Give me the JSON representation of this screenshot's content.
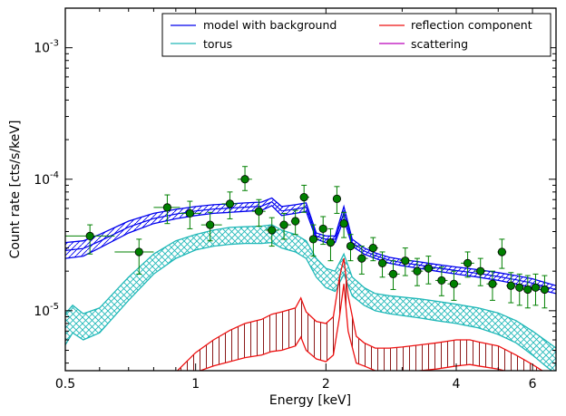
{
  "chart_data": {
    "type": "line",
    "xlabel": "Energy [keV]",
    "ylabel": "Count rate [cts/s/keV]",
    "x_scale": "log",
    "y_scale": "log",
    "xlim": [
      0.5,
      6.8
    ],
    "ylim": [
      3.5e-06,
      0.002
    ],
    "x_ticks": [
      {
        "value": 0.5,
        "label": "0.5"
      },
      {
        "value": 1,
        "label": "1"
      },
      {
        "value": 2,
        "label": "2"
      },
      {
        "value": 4,
        "label": "4"
      },
      {
        "value": 6,
        "label": "6"
      }
    ],
    "y_ticks": [
      {
        "value": 0.001,
        "base": "10",
        "exp": "-3"
      },
      {
        "value": 0.0001,
        "base": "10",
        "exp": "-4"
      },
      {
        "value": 1e-05,
        "base": "10",
        "exp": "-5"
      }
    ],
    "grid": false,
    "legend_position": "top-right",
    "colors": {
      "model": "#0000ee",
      "torus": "#20b8b8",
      "reflection": "#ee1111",
      "scattering": "#bb00bb",
      "data": "#008000",
      "reflection_hatch": "#8b1a1a"
    },
    "legend": [
      {
        "label": "model with background",
        "color": "#0000ee"
      },
      {
        "label": "reflection component",
        "color": "#ee1111"
      },
      {
        "label": "torus",
        "color": "#20b8b8"
      },
      {
        "label": "scattering",
        "color": "#bb00bb"
      }
    ],
    "series": [
      {
        "name": "model with background",
        "x": [
          0.5,
          0.55,
          0.6,
          0.7,
          0.8,
          0.9,
          1.0,
          1.1,
          1.2,
          1.3,
          1.42,
          1.5,
          1.58,
          1.7,
          1.8,
          1.9,
          2.0,
          2.1,
          2.2,
          2.3,
          2.45,
          2.6,
          2.8,
          3.0,
          3.3,
          3.6,
          4.0,
          4.5,
          5.0,
          5.5,
          6.0,
          6.5,
          6.8
        ],
        "y_low": [
          2.5e-05,
          2.6e-05,
          3e-05,
          3.9e-05,
          4.6e-05,
          5e-05,
          5.3e-05,
          5.5e-05,
          5.6e-05,
          5.7e-05,
          5.8e-05,
          6.3e-05,
          5.3e-05,
          5.5e-05,
          5.7e-05,
          3.5e-05,
          3.3e-05,
          3.3e-05,
          5e-05,
          3.1e-05,
          2.7e-05,
          2.5e-05,
          2.3e-05,
          2.2e-05,
          2.1e-05,
          2e-05,
          1.9e-05,
          1.8e-05,
          1.7e-05,
          1.6e-05,
          1.5e-05,
          1.4e-05,
          1.35e-05
        ],
        "y_high": [
          3.3e-05,
          3.4e-05,
          3.8e-05,
          4.8e-05,
          5.5e-05,
          5.9e-05,
          6.2e-05,
          6.4e-05,
          6.5e-05,
          6.6e-05,
          6.7e-05,
          7.2e-05,
          6.2e-05,
          6.4e-05,
          6.6e-05,
          3.9e-05,
          3.7e-05,
          3.7e-05,
          6.2e-05,
          3.5e-05,
          3e-05,
          2.75e-05,
          2.55e-05,
          2.45e-05,
          2.35e-05,
          2.25e-05,
          2.15e-05,
          2.05e-05,
          1.95e-05,
          1.85e-05,
          1.75e-05,
          1.62e-05,
          1.55e-05
        ]
      },
      {
        "name": "torus",
        "x": [
          0.5,
          0.52,
          0.55,
          0.6,
          0.7,
          0.8,
          0.9,
          1.0,
          1.1,
          1.2,
          1.3,
          1.42,
          1.5,
          1.58,
          1.7,
          1.8,
          1.9,
          2.0,
          2.1,
          2.2,
          2.3,
          2.45,
          2.6,
          2.8,
          3.0,
          3.3,
          3.6,
          4.0,
          4.5,
          5.0,
          5.5,
          6.0,
          6.5,
          6.8
        ],
        "y_low": [
          5.5e-06,
          6.8e-06,
          6e-06,
          6.8e-06,
          1.2e-05,
          1.9e-05,
          2.5e-05,
          2.9e-05,
          3.1e-05,
          3.2e-05,
          3.25e-05,
          3.25e-05,
          3.3e-05,
          3e-05,
          2.8e-05,
          2.5e-05,
          1.8e-05,
          1.5e-05,
          1.4e-05,
          1.9e-05,
          1.3e-05,
          1.1e-05,
          1e-05,
          9.5e-06,
          9.2e-06,
          8.8e-06,
          8.4e-06,
          8e-06,
          7.4e-06,
          6.6e-06,
          5.7e-06,
          4.6e-06,
          3.7e-06,
          3.3e-06
        ],
        "y_high": [
          9.5e-06,
          1.1e-05,
          9.5e-06,
          1.05e-05,
          1.8e-05,
          2.7e-05,
          3.4e-05,
          3.8e-05,
          4.1e-05,
          4.3e-05,
          4.35e-05,
          4.4e-05,
          4.5e-05,
          4.1e-05,
          3.8e-05,
          3.4e-05,
          2.5e-05,
          2.1e-05,
          2e-05,
          2.7e-05,
          1.8e-05,
          1.5e-05,
          1.35e-05,
          1.3e-05,
          1.27e-05,
          1.23e-05,
          1.18e-05,
          1.12e-05,
          1.05e-05,
          9.6e-06,
          8.4e-06,
          7e-06,
          5.8e-06,
          5.2e-06
        ]
      },
      {
        "name": "reflection component",
        "x": [
          0.9,
          1.0,
          1.1,
          1.2,
          1.3,
          1.42,
          1.5,
          1.58,
          1.7,
          1.75,
          1.8,
          1.9,
          2.0,
          2.08,
          2.15,
          2.2,
          2.25,
          2.35,
          2.45,
          2.6,
          2.8,
          3.0,
          3.3,
          3.6,
          4.0,
          4.3,
          4.5,
          5.0,
          5.5,
          6.0,
          6.5,
          6.8
        ],
        "y_low": [
          3e-06,
          3.4e-06,
          3.8e-06,
          4.1e-06,
          4.4e-06,
          4.6e-06,
          4.9e-06,
          5e-06,
          5.4e-06,
          6.3e-06,
          5e-06,
          4.3e-06,
          4.1e-06,
          4.6e-06,
          9e-06,
          1.6e-05,
          7e-06,
          4e-06,
          3.8e-06,
          3.5e-06,
          3.4e-06,
          3.4e-06,
          3.5e-06,
          3.6e-06,
          3.8e-06,
          3.9e-06,
          3.8e-06,
          3.6e-06,
          3.3e-06,
          2.9e-06,
          2.6e-06,
          2.4e-06
        ],
        "y_high": [
          3.4e-06,
          4.8e-06,
          6e-06,
          7.1e-06,
          8e-06,
          8.6e-06,
          9.4e-06,
          9.8e-06,
          1.05e-05,
          1.25e-05,
          9.8e-06,
          8.3e-06,
          8e-06,
          9e-06,
          1.8e-05,
          2.5e-05,
          1.3e-05,
          6.4e-06,
          5.7e-06,
          5.2e-06,
          5.2e-06,
          5.3e-06,
          5.5e-06,
          5.7e-06,
          6e-06,
          6e-06,
          5.8e-06,
          5.4e-06,
          4.6e-06,
          3.9e-06,
          3.3e-06,
          3e-06
        ]
      },
      {
        "name": "scattering",
        "x": [],
        "y": []
      },
      {
        "name": "data",
        "x": [
          0.57,
          0.74,
          0.86,
          0.97,
          1.08,
          1.2,
          1.3,
          1.4,
          1.5,
          1.6,
          1.7,
          1.78,
          1.87,
          1.97,
          2.05,
          2.12,
          2.2,
          2.28,
          2.42,
          2.57,
          2.7,
          2.86,
          3.05,
          3.25,
          3.45,
          3.7,
          3.95,
          4.25,
          4.55,
          4.85,
          5.1,
          5.35,
          5.6,
          5.85,
          6.1,
          6.4
        ],
        "y": [
          3.7e-05,
          2.8e-05,
          6.1e-05,
          5.5e-05,
          4.5e-05,
          6.5e-05,
          0.0001,
          5.7e-05,
          4.1e-05,
          4.5e-05,
          4.8e-05,
          7.3e-05,
          3.5e-05,
          4.2e-05,
          3.3e-05,
          7.1e-05,
          4.6e-05,
          3.1e-05,
          2.5e-05,
          3e-05,
          2.3e-05,
          1.9e-05,
          2.4e-05,
          2e-05,
          2.1e-05,
          1.7e-05,
          1.6e-05,
          2.3e-05,
          2e-05,
          1.6e-05,
          2.8e-05,
          1.55e-05,
          1.5e-05,
          1.45e-05,
          1.5e-05,
          1.45e-05
        ],
        "xerr_low": [
          0.5,
          0.65,
          0.8,
          0.92,
          1.03,
          1.15,
          1.25,
          1.35,
          1.45,
          1.56,
          1.66,
          1.74,
          1.83,
          1.93,
          2.01,
          2.09,
          2.16,
          2.24,
          2.36,
          2.5,
          2.64,
          2.78,
          2.96,
          3.15,
          3.35,
          3.58,
          3.82,
          4.1,
          4.4,
          4.7,
          4.98,
          5.22,
          5.48,
          5.72,
          5.97,
          6.25
        ],
        "xerr_high": [
          0.65,
          0.8,
          0.92,
          1.03,
          1.15,
          1.25,
          1.35,
          1.45,
          1.56,
          1.66,
          1.74,
          1.83,
          1.93,
          2.01,
          2.09,
          2.16,
          2.24,
          2.36,
          2.5,
          2.64,
          2.78,
          2.96,
          3.15,
          3.35,
          3.58,
          3.82,
          4.1,
          4.4,
          4.7,
          4.98,
          5.22,
          5.48,
          5.72,
          5.97,
          6.25,
          6.55
        ],
        "yerr_low": [
          2.7e-05,
          1.9e-05,
          4.6e-05,
          4.2e-05,
          3.4e-05,
          5e-05,
          8.2e-05,
          4.4e-05,
          3.1e-05,
          3.5e-05,
          3.8e-05,
          5.6e-05,
          2.6e-05,
          3.2e-05,
          2.4e-05,
          5.5e-05,
          3.6e-05,
          2.4e-05,
          1.9e-05,
          2.4e-05,
          1.8e-05,
          1.45e-05,
          1.85e-05,
          1.55e-05,
          1.6e-05,
          1.3e-05,
          1.2e-05,
          1.8e-05,
          1.55e-05,
          1.2e-05,
          2.1e-05,
          1.15e-05,
          1.1e-05,
          1.05e-05,
          1.1e-05,
          1.05e-05
        ],
        "yerr_high": [
          4.5e-05,
          3.5e-05,
          7.6e-05,
          6.8e-05,
          5.6e-05,
          8e-05,
          0.000125,
          7e-05,
          5.1e-05,
          5.5e-05,
          5.8e-05,
          9e-05,
          4.5e-05,
          5.2e-05,
          4.2e-05,
          8.8e-05,
          5.6e-05,
          3.8e-05,
          3.1e-05,
          3.6e-05,
          2.8e-05,
          2.4e-05,
          3e-05,
          2.5e-05,
          2.6e-05,
          2.15e-05,
          2e-05,
          2.8e-05,
          2.5e-05,
          2e-05,
          3.5e-05,
          1.95e-05,
          1.9e-05,
          1.85e-05,
          1.9e-05,
          1.85e-05
        ]
      }
    ]
  }
}
